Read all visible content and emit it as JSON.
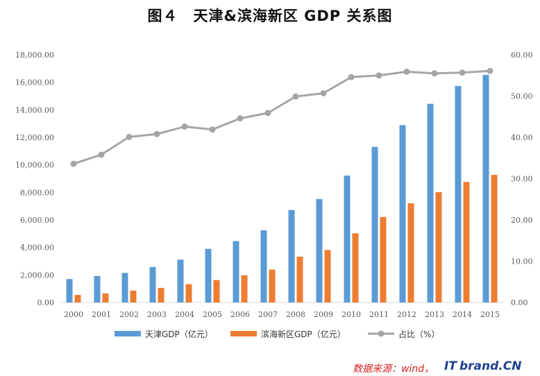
{
  "chart_data": {
    "type": "bar",
    "title": "图４　天津&滨海新区 GDP 关系图",
    "categories": [
      "2000",
      "2001",
      "2002",
      "2003",
      "2004",
      "2005",
      "2006",
      "2007",
      "2008",
      "2009",
      "2010",
      "2011",
      "2012",
      "2013",
      "2014",
      "2015"
    ],
    "series": [
      {
        "name": "天津GDP（亿元）",
        "kind": "bar",
        "axis": "left",
        "color": "#5b9bd5",
        "values": [
          1700,
          1920,
          2150,
          2580,
          3110,
          3900,
          4460,
          5250,
          6720,
          7520,
          9220,
          11310,
          12890,
          14440,
          15730,
          16540
        ]
      },
      {
        "name": "滨海新区GDP（亿元）",
        "kind": "bar",
        "axis": "left",
        "color": "#ed7d31",
        "values": [
          550,
          650,
          860,
          1060,
          1330,
          1630,
          1980,
          2390,
          3330,
          3810,
          5030,
          6210,
          7210,
          8020,
          8760,
          9270
        ]
      },
      {
        "name": "占比（%）",
        "kind": "line",
        "axis": "right",
        "color": "#a5a5a5",
        "values": [
          33.6,
          35.8,
          40.1,
          40.8,
          42.6,
          41.9,
          44.6,
          45.9,
          49.9,
          50.7,
          54.6,
          55.0,
          55.9,
          55.5,
          55.7,
          56.1
        ]
      }
    ],
    "y_left": {
      "min": 0,
      "max": 18000,
      "ticks": [
        "0.00",
        "2,000.00",
        "4,000.00",
        "6,000.00",
        "8,000.00",
        "10,000.00",
        "12,000.00",
        "14,000.00",
        "16,000.00",
        "18,000.00"
      ]
    },
    "y_right": {
      "min": 0,
      "max": 60,
      "ticks": [
        "0.00",
        "10.00",
        "20.00",
        "30.00",
        "40.00",
        "50.00",
        "60.00"
      ]
    },
    "legend_position": "bottom",
    "grid": false
  },
  "source_note": "数据来源：wind，",
  "watermark": {
    "prefix": "IT",
    "main": "brand.CN"
  }
}
